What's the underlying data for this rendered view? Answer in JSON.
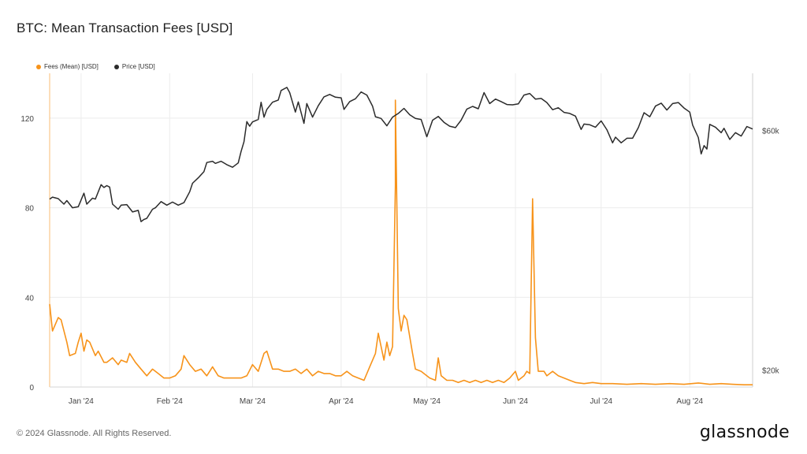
{
  "title": "BTC: Mean Transaction Fees [USD]",
  "footer": "© 2024 Glassnode. All Rights Reserved.",
  "brand": "glassnode",
  "colors": {
    "fees": "#f7931a",
    "price": "#2b2b2b",
    "grid": "#ececec"
  },
  "chart_data": {
    "type": "line",
    "title": "BTC: Mean Transaction Fees [USD]",
    "legend": [
      "Fees (Mean) [USD]",
      "Price [USD]"
    ],
    "legend_position": "top-left",
    "grid": true,
    "x_range": [
      "2023-12-21",
      "2024-08-23"
    ],
    "x_ticks": [
      {
        "date": "2024-01-01",
        "label": "Jan '24"
      },
      {
        "date": "2024-02-01",
        "label": "Feb '24"
      },
      {
        "date": "2024-03-01",
        "label": "Mar '24"
      },
      {
        "date": "2024-04-01",
        "label": "Apr '24"
      },
      {
        "date": "2024-05-01",
        "label": "May '24"
      },
      {
        "date": "2024-06-01",
        "label": "Jun '24"
      },
      {
        "date": "2024-07-01",
        "label": "Jul '24"
      },
      {
        "date": "2024-08-01",
        "label": "Aug '24"
      }
    ],
    "y_left": {
      "label": "",
      "ylim": [
        0,
        140
      ],
      "ticks": [
        0,
        40,
        80,
        120
      ],
      "tick_labels": [
        "0",
        "40",
        "80",
        "120"
      ]
    },
    "y_right": {
      "label": "",
      "scale": "log",
      "ylim": [
        18500,
        78000
      ],
      "ticks": [
        20000,
        60000
      ],
      "tick_labels": [
        "$20k",
        "$60k"
      ]
    },
    "series": [
      {
        "name": "Fees (Mean) [USD]",
        "axis": "left",
        "points": [
          [
            "2023-12-21",
            37
          ],
          [
            "2023-12-22",
            25
          ],
          [
            "2023-12-24",
            31
          ],
          [
            "2023-12-25",
            30
          ],
          [
            "2023-12-27",
            20
          ],
          [
            "2023-12-28",
            14
          ],
          [
            "2023-12-30",
            15
          ],
          [
            "2023-12-31",
            20
          ],
          [
            "2024-01-01",
            24
          ],
          [
            "2024-01-02",
            16
          ],
          [
            "2024-01-03",
            21
          ],
          [
            "2024-01-04",
            20
          ],
          [
            "2024-01-06",
            14
          ],
          [
            "2024-01-07",
            16
          ],
          [
            "2024-01-09",
            11
          ],
          [
            "2024-01-10",
            11
          ],
          [
            "2024-01-12",
            13
          ],
          [
            "2024-01-14",
            10
          ],
          [
            "2024-01-15",
            12
          ],
          [
            "2024-01-17",
            11
          ],
          [
            "2024-01-18",
            15
          ],
          [
            "2024-01-20",
            11
          ],
          [
            "2024-01-22",
            8
          ],
          [
            "2024-01-24",
            5
          ],
          [
            "2024-01-26",
            8
          ],
          [
            "2024-01-28",
            6
          ],
          [
            "2024-01-30",
            4
          ],
          [
            "2024-02-01",
            4
          ],
          [
            "2024-02-03",
            5
          ],
          [
            "2024-02-05",
            8
          ],
          [
            "2024-02-06",
            14
          ],
          [
            "2024-02-08",
            10
          ],
          [
            "2024-02-10",
            7
          ],
          [
            "2024-02-12",
            8
          ],
          [
            "2024-02-14",
            5
          ],
          [
            "2024-02-16",
            9
          ],
          [
            "2024-02-18",
            5
          ],
          [
            "2024-02-20",
            4
          ],
          [
            "2024-02-22",
            4
          ],
          [
            "2024-02-24",
            4
          ],
          [
            "2024-02-26",
            4
          ],
          [
            "2024-02-28",
            5
          ],
          [
            "2024-03-01",
            10
          ],
          [
            "2024-03-03",
            7
          ],
          [
            "2024-03-05",
            15
          ],
          [
            "2024-03-06",
            16
          ],
          [
            "2024-03-08",
            8
          ],
          [
            "2024-03-10",
            8
          ],
          [
            "2024-03-12",
            7
          ],
          [
            "2024-03-14",
            7
          ],
          [
            "2024-03-16",
            8
          ],
          [
            "2024-03-18",
            6
          ],
          [
            "2024-03-20",
            8
          ],
          [
            "2024-03-22",
            5
          ],
          [
            "2024-03-24",
            7
          ],
          [
            "2024-03-26",
            6
          ],
          [
            "2024-03-28",
            6
          ],
          [
            "2024-03-30",
            5
          ],
          [
            "2024-04-01",
            5
          ],
          [
            "2024-04-03",
            7
          ],
          [
            "2024-04-05",
            5
          ],
          [
            "2024-04-07",
            4
          ],
          [
            "2024-04-09",
            3
          ],
          [
            "2024-04-11",
            9
          ],
          [
            "2024-04-13",
            15
          ],
          [
            "2024-04-14",
            24
          ],
          [
            "2024-04-16",
            12
          ],
          [
            "2024-04-17",
            20
          ],
          [
            "2024-04-18",
            14
          ],
          [
            "2024-04-19",
            18
          ],
          [
            "2024-04-20",
            90
          ],
          [
            "2024-04-20",
            128
          ],
          [
            "2024-04-21",
            35
          ],
          [
            "2024-04-22",
            25
          ],
          [
            "2024-04-23",
            32
          ],
          [
            "2024-04-24",
            30
          ],
          [
            "2024-04-26",
            15
          ],
          [
            "2024-04-27",
            8
          ],
          [
            "2024-04-29",
            7
          ],
          [
            "2024-05-01",
            5
          ],
          [
            "2024-05-02",
            4
          ],
          [
            "2024-05-04",
            3
          ],
          [
            "2024-05-05",
            13
          ],
          [
            "2024-05-06",
            5
          ],
          [
            "2024-05-08",
            3
          ],
          [
            "2024-05-10",
            3
          ],
          [
            "2024-05-12",
            2
          ],
          [
            "2024-05-14",
            3
          ],
          [
            "2024-05-16",
            2
          ],
          [
            "2024-05-18",
            3
          ],
          [
            "2024-05-20",
            2
          ],
          [
            "2024-05-22",
            3
          ],
          [
            "2024-05-24",
            2
          ],
          [
            "2024-05-26",
            3
          ],
          [
            "2024-05-28",
            2
          ],
          [
            "2024-05-30",
            4
          ],
          [
            "2024-06-01",
            7
          ],
          [
            "2024-06-02",
            3
          ],
          [
            "2024-06-04",
            5
          ],
          [
            "2024-06-05",
            7
          ],
          [
            "2024-06-06",
            6
          ],
          [
            "2024-06-07",
            84
          ],
          [
            "2024-06-08",
            22
          ],
          [
            "2024-06-09",
            7
          ],
          [
            "2024-06-11",
            7
          ],
          [
            "2024-06-12",
            5
          ],
          [
            "2024-06-14",
            7
          ],
          [
            "2024-06-16",
            5
          ],
          [
            "2024-06-18",
            4
          ],
          [
            "2024-06-20",
            3
          ],
          [
            "2024-06-22",
            2
          ],
          [
            "2024-06-25",
            1.5
          ],
          [
            "2024-06-28",
            2
          ],
          [
            "2024-07-01",
            1.5
          ],
          [
            "2024-07-05",
            1.5
          ],
          [
            "2024-07-10",
            1.2
          ],
          [
            "2024-07-15",
            1.5
          ],
          [
            "2024-07-20",
            1.2
          ],
          [
            "2024-07-25",
            1.5
          ],
          [
            "2024-07-30",
            1.2
          ],
          [
            "2024-08-04",
            1.8
          ],
          [
            "2024-08-08",
            1.2
          ],
          [
            "2024-08-12",
            1.5
          ],
          [
            "2024-08-16",
            1.2
          ],
          [
            "2024-08-20",
            1.0
          ],
          [
            "2024-08-23",
            1.0
          ]
        ]
      },
      {
        "name": "Price [USD]",
        "axis": "right",
        "points": [
          [
            "2023-12-21",
            43800
          ],
          [
            "2023-12-22",
            44200
          ],
          [
            "2023-12-24",
            43900
          ],
          [
            "2023-12-26",
            42800
          ],
          [
            "2023-12-27",
            43500
          ],
          [
            "2023-12-29",
            42100
          ],
          [
            "2023-12-31",
            42300
          ],
          [
            "2024-01-02",
            45000
          ],
          [
            "2024-01-03",
            42800
          ],
          [
            "2024-01-05",
            44000
          ],
          [
            "2024-01-06",
            43800
          ],
          [
            "2024-01-08",
            46800
          ],
          [
            "2024-01-09",
            46200
          ],
          [
            "2024-01-10",
            46600
          ],
          [
            "2024-01-11",
            46300
          ],
          [
            "2024-01-12",
            42800
          ],
          [
            "2024-01-14",
            41800
          ],
          [
            "2024-01-15",
            42600
          ],
          [
            "2024-01-17",
            42700
          ],
          [
            "2024-01-19",
            41300
          ],
          [
            "2024-01-21",
            41600
          ],
          [
            "2024-01-22",
            39500
          ],
          [
            "2024-01-23",
            39900
          ],
          [
            "2024-01-24",
            40100
          ],
          [
            "2024-01-26",
            41800
          ],
          [
            "2024-01-27",
            42100
          ],
          [
            "2024-01-29",
            43300
          ],
          [
            "2024-01-31",
            42600
          ],
          [
            "2024-02-02",
            43200
          ],
          [
            "2024-02-04",
            42600
          ],
          [
            "2024-02-06",
            43100
          ],
          [
            "2024-02-08",
            45300
          ],
          [
            "2024-02-09",
            47100
          ],
          [
            "2024-02-11",
            48300
          ],
          [
            "2024-02-13",
            49700
          ],
          [
            "2024-02-14",
            51800
          ],
          [
            "2024-02-16",
            52100
          ],
          [
            "2024-02-17",
            51600
          ],
          [
            "2024-02-19",
            52100
          ],
          [
            "2024-02-21",
            51300
          ],
          [
            "2024-02-23",
            50700
          ],
          [
            "2024-02-25",
            51700
          ],
          [
            "2024-02-26",
            54500
          ],
          [
            "2024-02-27",
            57000
          ],
          [
            "2024-02-28",
            62500
          ],
          [
            "2024-02-29",
            61200
          ],
          [
            "2024-03-01",
            62400
          ],
          [
            "2024-03-03",
            63100
          ],
          [
            "2024-03-04",
            68300
          ],
          [
            "2024-03-05",
            63800
          ],
          [
            "2024-03-06",
            66100
          ],
          [
            "2024-03-08",
            68300
          ],
          [
            "2024-03-10",
            69000
          ],
          [
            "2024-03-11",
            72100
          ],
          [
            "2024-03-13",
            73100
          ],
          [
            "2024-03-14",
            71400
          ],
          [
            "2024-03-16",
            65300
          ],
          [
            "2024-03-17",
            68400
          ],
          [
            "2024-03-19",
            62000
          ],
          [
            "2024-03-20",
            67900
          ],
          [
            "2024-03-22",
            63800
          ],
          [
            "2024-03-24",
            67200
          ],
          [
            "2024-03-26",
            70000
          ],
          [
            "2024-03-28",
            70800
          ],
          [
            "2024-03-30",
            69900
          ],
          [
            "2024-04-01",
            69700
          ],
          [
            "2024-04-02",
            66100
          ],
          [
            "2024-04-04",
            68500
          ],
          [
            "2024-04-06",
            69400
          ],
          [
            "2024-04-08",
            71600
          ],
          [
            "2024-04-10",
            70600
          ],
          [
            "2024-04-12",
            67100
          ],
          [
            "2024-04-13",
            63900
          ],
          [
            "2024-04-15",
            63400
          ],
          [
            "2024-04-17",
            61300
          ],
          [
            "2024-04-19",
            63800
          ],
          [
            "2024-04-21",
            64900
          ],
          [
            "2024-04-23",
            66400
          ],
          [
            "2024-04-25",
            64500
          ],
          [
            "2024-04-27",
            63400
          ],
          [
            "2024-04-29",
            63100
          ],
          [
            "2024-05-01",
            58300
          ],
          [
            "2024-05-03",
            62900
          ],
          [
            "2024-05-05",
            64000
          ],
          [
            "2024-05-07",
            62300
          ],
          [
            "2024-05-09",
            61200
          ],
          [
            "2024-05-11",
            60800
          ],
          [
            "2024-05-13",
            62900
          ],
          [
            "2024-05-15",
            66200
          ],
          [
            "2024-05-17",
            67000
          ],
          [
            "2024-05-19",
            66300
          ],
          [
            "2024-05-21",
            71400
          ],
          [
            "2024-05-23",
            67900
          ],
          [
            "2024-05-25",
            69300
          ],
          [
            "2024-05-27",
            68500
          ],
          [
            "2024-05-29",
            67600
          ],
          [
            "2024-05-31",
            67500
          ],
          [
            "2024-06-02",
            67800
          ],
          [
            "2024-06-04",
            70600
          ],
          [
            "2024-06-06",
            71100
          ],
          [
            "2024-06-08",
            69300
          ],
          [
            "2024-06-10",
            69500
          ],
          [
            "2024-06-12",
            68200
          ],
          [
            "2024-06-14",
            66000
          ],
          [
            "2024-06-16",
            66600
          ],
          [
            "2024-06-18",
            65200
          ],
          [
            "2024-06-20",
            64900
          ],
          [
            "2024-06-22",
            64100
          ],
          [
            "2024-06-24",
            60300
          ],
          [
            "2024-06-25",
            61800
          ],
          [
            "2024-06-27",
            61600
          ],
          [
            "2024-06-29",
            60900
          ],
          [
            "2024-07-01",
            62700
          ],
          [
            "2024-07-03",
            60200
          ],
          [
            "2024-07-05",
            56700
          ],
          [
            "2024-07-06",
            58200
          ],
          [
            "2024-07-08",
            56700
          ],
          [
            "2024-07-10",
            57900
          ],
          [
            "2024-07-12",
            57900
          ],
          [
            "2024-07-14",
            60800
          ],
          [
            "2024-07-16",
            65100
          ],
          [
            "2024-07-18",
            63900
          ],
          [
            "2024-07-20",
            67100
          ],
          [
            "2024-07-22",
            68000
          ],
          [
            "2024-07-24",
            65900
          ],
          [
            "2024-07-26",
            67900
          ],
          [
            "2024-07-28",
            68200
          ],
          [
            "2024-07-30",
            66500
          ],
          [
            "2024-08-01",
            65300
          ],
          [
            "2024-08-02",
            61500
          ],
          [
            "2024-08-04",
            58100
          ],
          [
            "2024-08-05",
            53900
          ],
          [
            "2024-08-06",
            56000
          ],
          [
            "2024-08-07",
            55100
          ],
          [
            "2024-08-08",
            61700
          ],
          [
            "2024-08-10",
            60900
          ],
          [
            "2024-08-12",
            59400
          ],
          [
            "2024-08-13",
            60600
          ],
          [
            "2024-08-15",
            57600
          ],
          [
            "2024-08-17",
            59400
          ],
          [
            "2024-08-19",
            58500
          ],
          [
            "2024-08-21",
            61100
          ],
          [
            "2024-08-23",
            60400
          ]
        ]
      }
    ]
  }
}
